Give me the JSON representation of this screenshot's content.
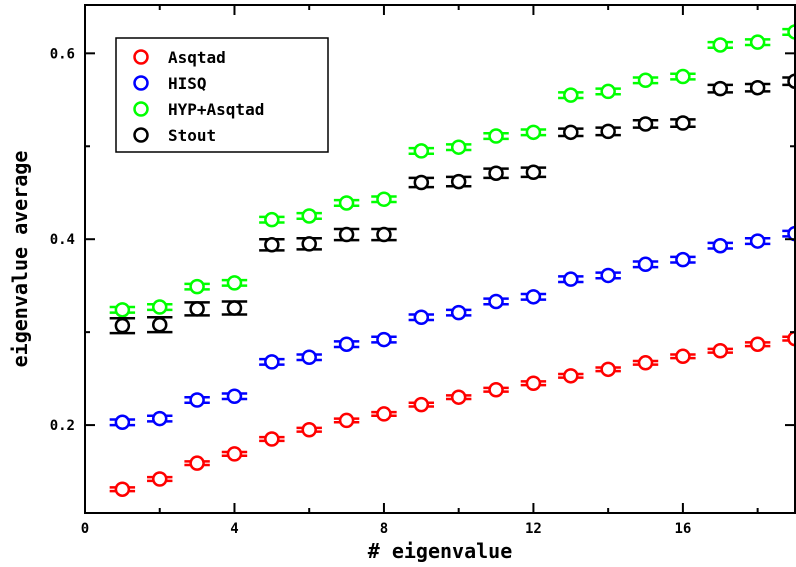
{
  "chart_data": {
    "type": "scatter",
    "title": "",
    "xlabel": "# eigenvalue",
    "ylabel": "eigenvalue average",
    "xlim": [
      0,
      19
    ],
    "ylim": [
      0.1054,
      0.652
    ],
    "xticks": [
      0,
      4,
      8,
      12,
      16
    ],
    "xtick_labels": [
      "0",
      "4",
      "8",
      "12",
      "16"
    ],
    "yticks": [
      0.2,
      0.4,
      0.6
    ],
    "ytick_labels": [
      "0.2",
      "0.4",
      "0.6"
    ],
    "grid": false,
    "legend_position": "top-left",
    "x": [
      1,
      2,
      3,
      4,
      5,
      6,
      7,
      8,
      9,
      10,
      11,
      12,
      13,
      14,
      15,
      16,
      17,
      18,
      19
    ],
    "series": [
      {
        "name": "Asqtad",
        "color": "#ff0000",
        "values": [
          0.131,
          0.142,
          0.159,
          0.169,
          0.185,
          0.195,
          0.205,
          0.212,
          0.222,
          0.23,
          0.238,
          0.245,
          0.253,
          0.26,
          0.267,
          0.274,
          0.28,
          0.287,
          0.293
        ],
        "errors": [
          0.002,
          0.002,
          0.002,
          0.002,
          0.002,
          0.002,
          0.002,
          0.002,
          0.002,
          0.002,
          0.002,
          0.002,
          0.002,
          0.002,
          0.002,
          0.002,
          0.002,
          0.002,
          0.002
        ]
      },
      {
        "name": "HISQ",
        "color": "#0000ff",
        "values": [
          0.203,
          0.207,
          0.227,
          0.231,
          0.268,
          0.273,
          0.287,
          0.292,
          0.316,
          0.321,
          0.333,
          0.338,
          0.357,
          0.361,
          0.373,
          0.378,
          0.393,
          0.398,
          0.406
        ],
        "errors": [
          0.003,
          0.003,
          0.003,
          0.003,
          0.003,
          0.003,
          0.003,
          0.003,
          0.003,
          0.003,
          0.003,
          0.003,
          0.003,
          0.003,
          0.003,
          0.003,
          0.003,
          0.003,
          0.003
        ]
      },
      {
        "name": "HYP+Asqtad",
        "color": "#00ff00",
        "values": [
          0.324,
          0.327,
          0.349,
          0.353,
          0.421,
          0.425,
          0.439,
          0.443,
          0.495,
          0.499,
          0.511,
          0.515,
          0.555,
          0.559,
          0.571,
          0.575,
          0.609,
          0.612,
          0.623
        ],
        "errors": [
          0.003,
          0.003,
          0.003,
          0.003,
          0.003,
          0.003,
          0.003,
          0.003,
          0.003,
          0.003,
          0.003,
          0.003,
          0.003,
          0.003,
          0.003,
          0.003,
          0.003,
          0.003,
          0.003
        ]
      },
      {
        "name": "Stout",
        "color": "#000000",
        "values": [
          0.307,
          0.308,
          0.325,
          0.326,
          0.394,
          0.395,
          0.405,
          0.405,
          0.461,
          0.462,
          0.471,
          0.472,
          0.515,
          0.516,
          0.524,
          0.525,
          0.562,
          0.563,
          0.57
        ],
        "errors": [
          0.008,
          0.008,
          0.007,
          0.007,
          0.006,
          0.006,
          0.006,
          0.006,
          0.005,
          0.005,
          0.005,
          0.005,
          0.004,
          0.004,
          0.004,
          0.004,
          0.004,
          0.004,
          0.004
        ]
      }
    ]
  }
}
